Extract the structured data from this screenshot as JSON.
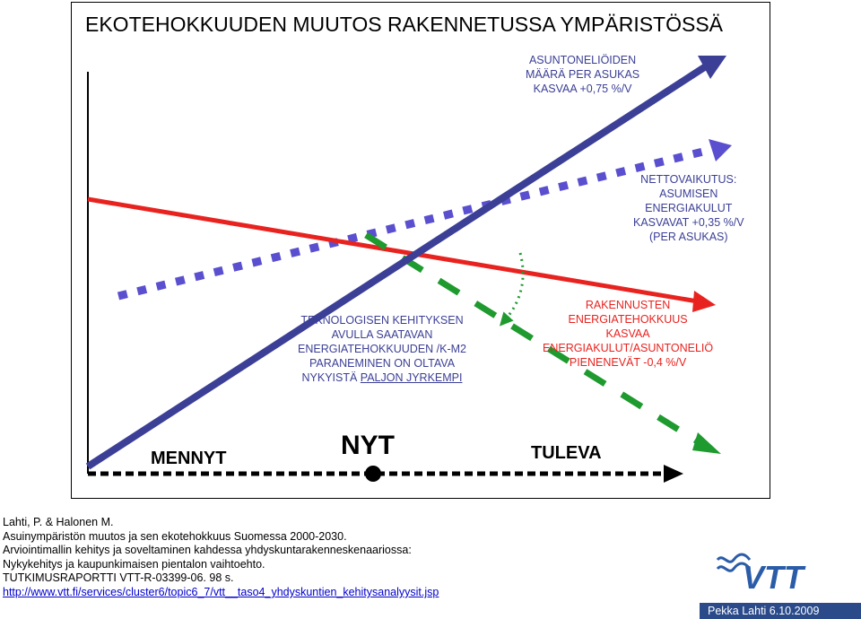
{
  "title": "EKOTEHOKKUUDEN MUUTOS RAKENNETUSSA YMPÄRISTÖSSÄ",
  "labels": {
    "apartments": [
      "ASUNTONELIÖIDEN",
      "MÄÄRÄ PER ASUKAS",
      "KASVAA +0,75 %/V"
    ],
    "net_effect": [
      "NETTOVAIKUTUS:",
      "ASUMISEN",
      "ENERGIAKULUT",
      "KASVAVAT +0,35 %/V",
      "(PER ASUKAS)"
    ],
    "technology": [
      "TEKNOLOGISEN KEHITYKSEN",
      "AVULLA SAATAVAN",
      "ENERGIATEHOKKUUDEN /K-M2",
      "PARANEMINEN ON OLTAVA",
      "NYKYISTÄ "
    ],
    "technology_underlined": "PALJON JYRKEMPI",
    "buildings": [
      "RAKENNUSTEN",
      "ENERGIATEHOKKUUS",
      "KASVAA",
      "ENERGIAKULUT/ASUNTONELIÖ",
      "PIENENEVÄT -0,4 %/V"
    ]
  },
  "timeline": {
    "past": "MENNYT",
    "now": "NYT",
    "future": "TULEVA"
  },
  "citation": [
    "Lahti, P. & Halonen M.",
    "Asuinympäristön muutos ja sen ekotehokkuus Suomessa 2000-2030.",
    "Arviointimallin kehitys ja soveltaminen kahdessa yhdyskuntarakenneskenaariossa:",
    "Nykykehitys ja kaupunkimaisen pientalon vaihtoehto.",
    "TUTKIMUSRAPORTTI  VTT-R-03399-06. 98 s."
  ],
  "link": "http://www.vtt.fi/services/cluster6/topic6_7/vtt__taso4_yhdyskuntien_kehitysanalyysit.jsp",
  "footer": "Pekka Lahti 6.10.2009",
  "logo_text": "VTT",
  "colors": {
    "blue": "#3b3f96",
    "red": "#e8231f",
    "green": "#1e9a2e",
    "purple": "#5a4fcf",
    "footer_bg": "#2a4a8a"
  }
}
